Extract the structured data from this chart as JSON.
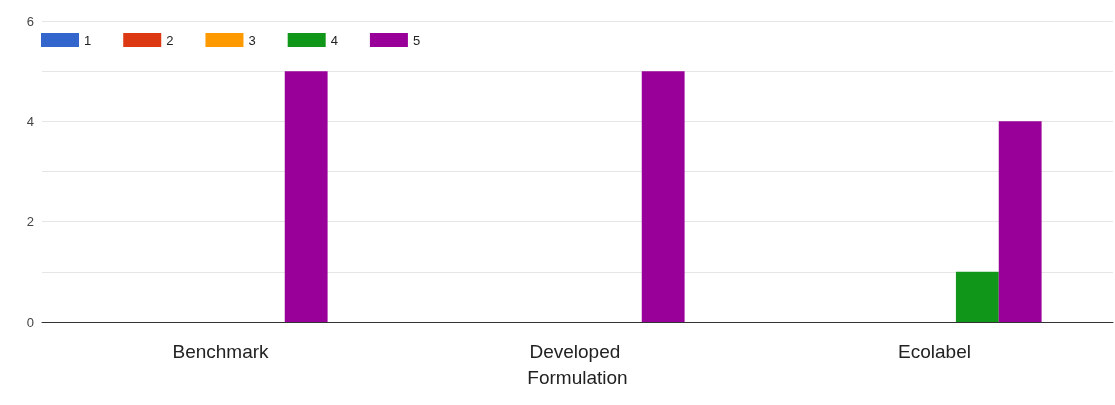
{
  "chart_data": {
    "type": "bar",
    "categories": [
      "Benchmark",
      "Developed Formulation",
      "Ecolabel"
    ],
    "series": [
      {
        "name": "1",
        "color": "#3366cc",
        "values": [
          0,
          0,
          0
        ]
      },
      {
        "name": "2",
        "color": "#dc3912",
        "values": [
          0,
          0,
          0
        ]
      },
      {
        "name": "3",
        "color": "#ff9900",
        "values": [
          0,
          0,
          0
        ]
      },
      {
        "name": "4",
        "color": "#109618",
        "values": [
          0,
          0,
          1
        ]
      },
      {
        "name": "5",
        "color": "#990099",
        "values": [
          5,
          5,
          4
        ]
      }
    ],
    "ylim": [
      0,
      6
    ],
    "yticks": [
      0,
      {
        "value": 1,
        "label": null
      },
      2,
      {
        "value": 3,
        "label": null
      },
      4,
      {
        "value": 5,
        "label": null
      },
      6
    ],
    "grid": true,
    "legend": "top left"
  }
}
